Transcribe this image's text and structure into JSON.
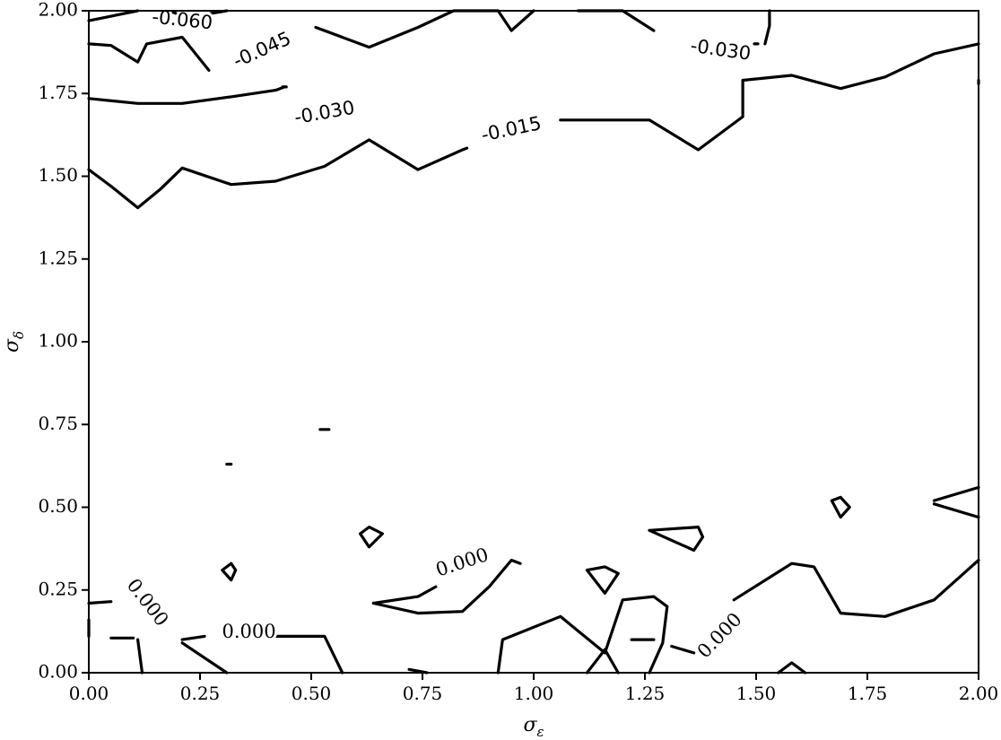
{
  "chart_data": {
    "type": "contour",
    "xlabel": "σ_ε",
    "ylabel": "σ_δ",
    "xlim": [
      0,
      2
    ],
    "ylim": [
      0,
      2
    ],
    "x_ticks": [
      "0.00",
      "0.25",
      "0.50",
      "0.75",
      "1.00",
      "1.25",
      "1.50",
      "1.75",
      "2.00"
    ],
    "y_ticks": [
      "0.00",
      "0.25",
      "0.50",
      "0.75",
      "1.00",
      "1.25",
      "1.50",
      "1.75",
      "2.00"
    ],
    "levels": [
      "-0.060",
      "-0.045",
      "-0.030",
      "-0.015",
      "0.000"
    ],
    "contours": [
      {
        "level": "-0.060",
        "points": [
          [
            0,
            1.97
          ],
          [
            0.11,
            2.0
          ]
        ]
      },
      {
        "level": "-0.060",
        "points": [
          [
            0.18,
            2.0
          ],
          [
            0.22,
            1.98
          ],
          [
            0.31,
            2.0
          ]
        ]
      },
      {
        "level": "-0.045",
        "points": [
          [
            0,
            1.9
          ],
          [
            0.05,
            1.895
          ],
          [
            0.11,
            1.845
          ],
          [
            0.13,
            1.9
          ],
          [
            0.21,
            1.92
          ],
          [
            0.27,
            1.82
          ]
        ]
      },
      {
        "level": "-0.045",
        "points": [
          [
            0.51,
            1.95
          ],
          [
            0.63,
            1.89
          ],
          [
            0.74,
            1.95
          ],
          [
            0.82,
            2.0
          ],
          [
            0.92,
            2.0
          ],
          [
            0.95,
            1.94
          ],
          [
            1.0,
            2.0
          ]
        ]
      },
      {
        "level": "-0.045",
        "points": [
          [
            1.1,
            2.0
          ],
          [
            1.2,
            2.0
          ],
          [
            1.27,
            1.94
          ]
        ]
      },
      {
        "level": "-0.030",
        "points": [
          [
            0,
            1.735
          ],
          [
            0.11,
            1.72
          ],
          [
            0.21,
            1.72
          ],
          [
            0.32,
            1.74
          ],
          [
            0.42,
            1.76
          ],
          [
            0.44,
            1.77
          ]
        ]
      },
      {
        "level": "-0.030",
        "points": [
          [
            0.44,
            1.77
          ],
          [
            0.44,
            1.77
          ]
        ]
      },
      {
        "level": "-0.030",
        "points": [
          [
            1.52,
            1.9
          ],
          [
            1.53,
            1.955
          ],
          [
            1.53,
            2.0
          ]
        ]
      },
      {
        "level": "-0.030",
        "points": [
          [
            1.5,
            1.9
          ],
          [
            1.5,
            1.9
          ]
        ]
      },
      {
        "level": "-0.015",
        "points": [
          [
            0,
            1.52
          ],
          [
            0.05,
            1.47
          ],
          [
            0.11,
            1.405
          ],
          [
            0.16,
            1.46
          ],
          [
            0.21,
            1.525
          ],
          [
            0.32,
            1.475
          ],
          [
            0.42,
            1.485
          ],
          [
            0.53,
            1.53
          ],
          [
            0.63,
            1.61
          ],
          [
            0.74,
            1.52
          ],
          [
            0.84,
            1.58
          ],
          [
            0.85,
            1.585
          ]
        ]
      },
      {
        "level": "-0.015",
        "points": [
          [
            1.06,
            1.67
          ],
          [
            1.16,
            1.67
          ],
          [
            1.26,
            1.67
          ],
          [
            1.37,
            1.58
          ],
          [
            1.47,
            1.68
          ],
          [
            1.47,
            1.79
          ],
          [
            1.58,
            1.805
          ],
          [
            1.69,
            1.765
          ],
          [
            1.79,
            1.8
          ],
          [
            1.9,
            1.87
          ],
          [
            2.0,
            1.9
          ]
        ]
      },
      {
        "level": "-0.015",
        "points": [
          [
            2.0,
            1.79
          ],
          [
            2.0,
            1.78
          ]
        ]
      },
      {
        "level": "0.000",
        "points": [
          [
            0,
            0.21
          ],
          [
            0.05,
            0.215
          ]
        ]
      },
      {
        "level": "0.000",
        "points": [
          [
            0,
            0.16
          ],
          [
            0.0,
            0.11
          ]
        ]
      },
      {
        "level": "0.000",
        "points": [
          [
            0.05,
            0.105
          ],
          [
            0.1,
            0.105
          ]
        ]
      },
      {
        "level": "0.000",
        "points": [
          [
            0.11,
            0.1
          ],
          [
            0.12,
            0.0
          ]
        ]
      },
      {
        "level": "0.000",
        "points": [
          [
            0.21,
            0.1
          ],
          [
            0.26,
            0.11
          ]
        ]
      },
      {
        "level": "0.000",
        "points": [
          [
            0.21,
            0.09
          ],
          [
            0.31,
            0.0
          ]
        ]
      },
      {
        "level": "0.000",
        "points": [
          [
            0.42,
            0.11
          ],
          [
            0.53,
            0.11
          ],
          [
            0.57,
            0.0
          ]
        ]
      },
      {
        "level": "0.000",
        "points": [
          [
            0.3,
            0.31
          ],
          [
            0.32,
            0.33
          ],
          [
            0.33,
            0.31
          ],
          [
            0.32,
            0.28
          ],
          [
            0.3,
            0.31
          ]
        ]
      },
      {
        "level": "0.000",
        "points": [
          [
            0.61,
            0.42
          ],
          [
            0.63,
            0.44
          ],
          [
            0.66,
            0.42
          ],
          [
            0.63,
            0.38
          ],
          [
            0.61,
            0.42
          ]
        ]
      },
      {
        "level": "0.000",
        "points": [
          [
            0.64,
            0.21
          ],
          [
            0.74,
            0.18
          ],
          [
            0.84,
            0.185
          ],
          [
            0.9,
            0.26
          ],
          [
            0.95,
            0.34
          ],
          [
            0.97,
            0.33
          ]
        ]
      },
      {
        "level": "0.000",
        "points": [
          [
            0.64,
            0.21
          ],
          [
            0.74,
            0.23
          ],
          [
            0.78,
            0.26
          ]
        ]
      },
      {
        "level": "0.000",
        "points": [
          [
            0.72,
            0.01
          ],
          [
            0.76,
            0.0
          ]
        ]
      },
      {
        "level": "0.000",
        "points": [
          [
            0.92,
            0.0
          ],
          [
            0.93,
            0.1
          ],
          [
            1.06,
            0.17
          ],
          [
            1.16,
            0.06
          ],
          [
            1.2,
            0.22
          ],
          [
            1.27,
            0.23
          ],
          [
            1.3,
            0.2
          ],
          [
            1.29,
            0.09
          ],
          [
            1.26,
            0.0
          ]
        ]
      },
      {
        "level": "0.000",
        "points": [
          [
            1.12,
            0.31
          ],
          [
            1.16,
            0.32
          ],
          [
            1.19,
            0.3
          ],
          [
            1.16,
            0.24
          ],
          [
            1.12,
            0.31
          ]
        ]
      },
      {
        "level": "0.000",
        "points": [
          [
            1.26,
            0.43
          ],
          [
            1.37,
            0.44
          ],
          [
            1.38,
            0.41
          ],
          [
            1.36,
            0.37
          ],
          [
            1.26,
            0.43
          ]
        ]
      },
      {
        "level": "0.000",
        "points": [
          [
            1.12,
            0.0
          ],
          [
            1.16,
            0.07
          ],
          [
            1.19,
            0.0
          ]
        ]
      },
      {
        "level": "0.000",
        "points": [
          [
            1.22,
            0.1
          ],
          [
            1.27,
            0.1
          ]
        ]
      },
      {
        "level": "0.000",
        "points": [
          [
            1.31,
            0.08
          ],
          [
            1.36,
            0.06
          ]
        ]
      },
      {
        "level": "0.000",
        "points": [
          [
            1.45,
            0.22
          ],
          [
            1.58,
            0.33
          ],
          [
            1.63,
            0.32
          ],
          [
            1.69,
            0.18
          ],
          [
            1.79,
            0.17
          ],
          [
            1.9,
            0.22
          ],
          [
            2.0,
            0.34
          ]
        ]
      },
      {
        "level": "0.000",
        "points": [
          [
            1.55,
            0.0
          ],
          [
            1.58,
            0.03
          ],
          [
            1.61,
            0.0
          ]
        ]
      },
      {
        "level": "0.000",
        "points": [
          [
            1.67,
            0.52
          ],
          [
            1.69,
            0.53
          ],
          [
            1.71,
            0.5
          ],
          [
            1.69,
            0.47
          ],
          [
            1.67,
            0.52
          ]
        ]
      },
      {
        "level": "0.000",
        "points": [
          [
            1.9,
            0.52
          ],
          [
            2.0,
            0.56
          ]
        ]
      },
      {
        "level": "0.000",
        "points": [
          [
            1.9,
            0.51
          ],
          [
            2.0,
            0.47
          ]
        ]
      },
      {
        "level": "0.000",
        "points": [
          [
            0.31,
            0.63
          ],
          [
            0.32,
            0.63
          ]
        ]
      },
      {
        "level": "0.000",
        "points": [
          [
            0.52,
            0.735
          ],
          [
            0.54,
            0.735
          ]
        ]
      }
    ],
    "contour_labels": [
      {
        "text": "-0.060",
        "x": 0.21,
        "y": 1.97,
        "rotation": 6
      },
      {
        "text": "-0.045",
        "x": 0.39,
        "y": 1.88,
        "rotation": -24
      },
      {
        "text": "-0.030",
        "x": 1.42,
        "y": 1.88,
        "rotation": 8
      },
      {
        "text": "-0.030",
        "x": 0.53,
        "y": 1.69,
        "rotation": -10
      },
      {
        "text": "-0.015",
        "x": 0.95,
        "y": 1.64,
        "rotation": -12
      },
      {
        "text": "0.000",
        "x": 0.13,
        "y": 0.21,
        "rotation": 52
      },
      {
        "text": "0.000",
        "x": 0.36,
        "y": 0.12,
        "rotation": 0
      },
      {
        "text": "0.000",
        "x": 0.84,
        "y": 0.33,
        "rotation": -18
      },
      {
        "text": "0.000",
        "x": 1.42,
        "y": 0.11,
        "rotation": -46
      }
    ]
  }
}
